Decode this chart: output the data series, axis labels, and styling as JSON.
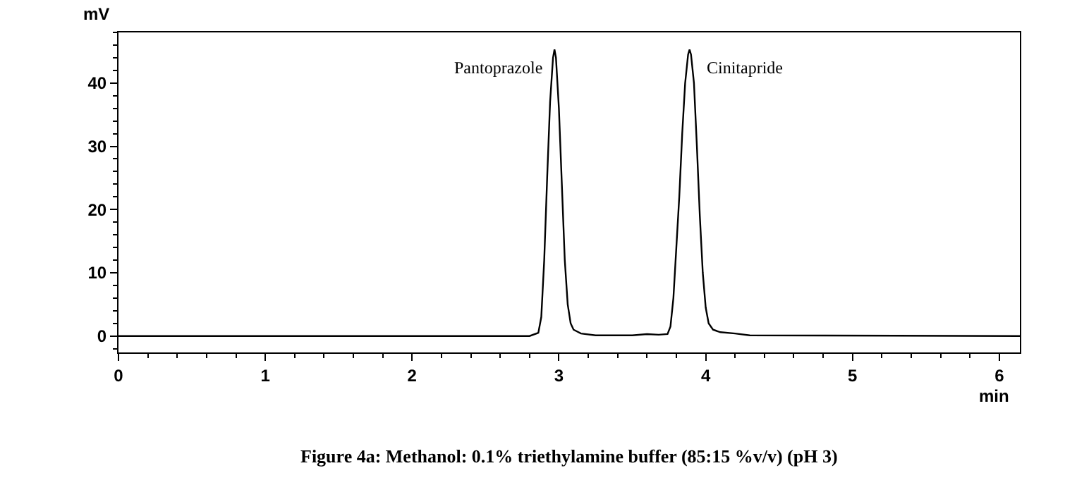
{
  "chart_data": {
    "type": "line",
    "xlabel": "min",
    "ylabel": "mV",
    "x": [
      0,
      2.8,
      2.86,
      2.88,
      2.9,
      2.92,
      2.94,
      2.96,
      2.97,
      2.98,
      3.0,
      3.02,
      3.04,
      3.06,
      3.08,
      3.1,
      3.15,
      3.25,
      3.5,
      3.6,
      3.68,
      3.74,
      3.76,
      3.78,
      3.8,
      3.82,
      3.84,
      3.86,
      3.88,
      3.89,
      3.9,
      3.92,
      3.94,
      3.96,
      3.98,
      4.0,
      4.02,
      4.05,
      4.1,
      4.2,
      4.3,
      6.14
    ],
    "series": [
      {
        "color": "#000000",
        "values": [
          0,
          0,
          0.5,
          3,
          12,
          25,
          37,
          44,
          45.3,
          44,
          36,
          24,
          12,
          5,
          2,
          1,
          0.4,
          0.1,
          0.1,
          0.3,
          0.2,
          0.3,
          1.5,
          6,
          14,
          22,
          32,
          40,
          44.5,
          45.3,
          44.5,
          40,
          30,
          19,
          10,
          4.5,
          2,
          1,
          0.6,
          0.4,
          0.1,
          0
        ]
      }
    ],
    "xlim": [
      0,
      6.14
    ],
    "xticks": [
      0,
      1,
      2,
      3,
      4,
      5,
      6
    ],
    "ylim": [
      -2.6,
      48
    ],
    "yticks": [
      0,
      10,
      20,
      30,
      40
    ],
    "marker": "none",
    "line_style": "solid",
    "annotations": [
      {
        "text": "Pantoprazole",
        "x": 2.97,
        "y": 45.3
      },
      {
        "text": "Cinitapride",
        "x": 3.89,
        "y": 45.3
      },
      "Figure 4a: Methanol: 0.1% triethylamine buffer (85:15 %v/v) (pH 3)"
    ]
  }
}
